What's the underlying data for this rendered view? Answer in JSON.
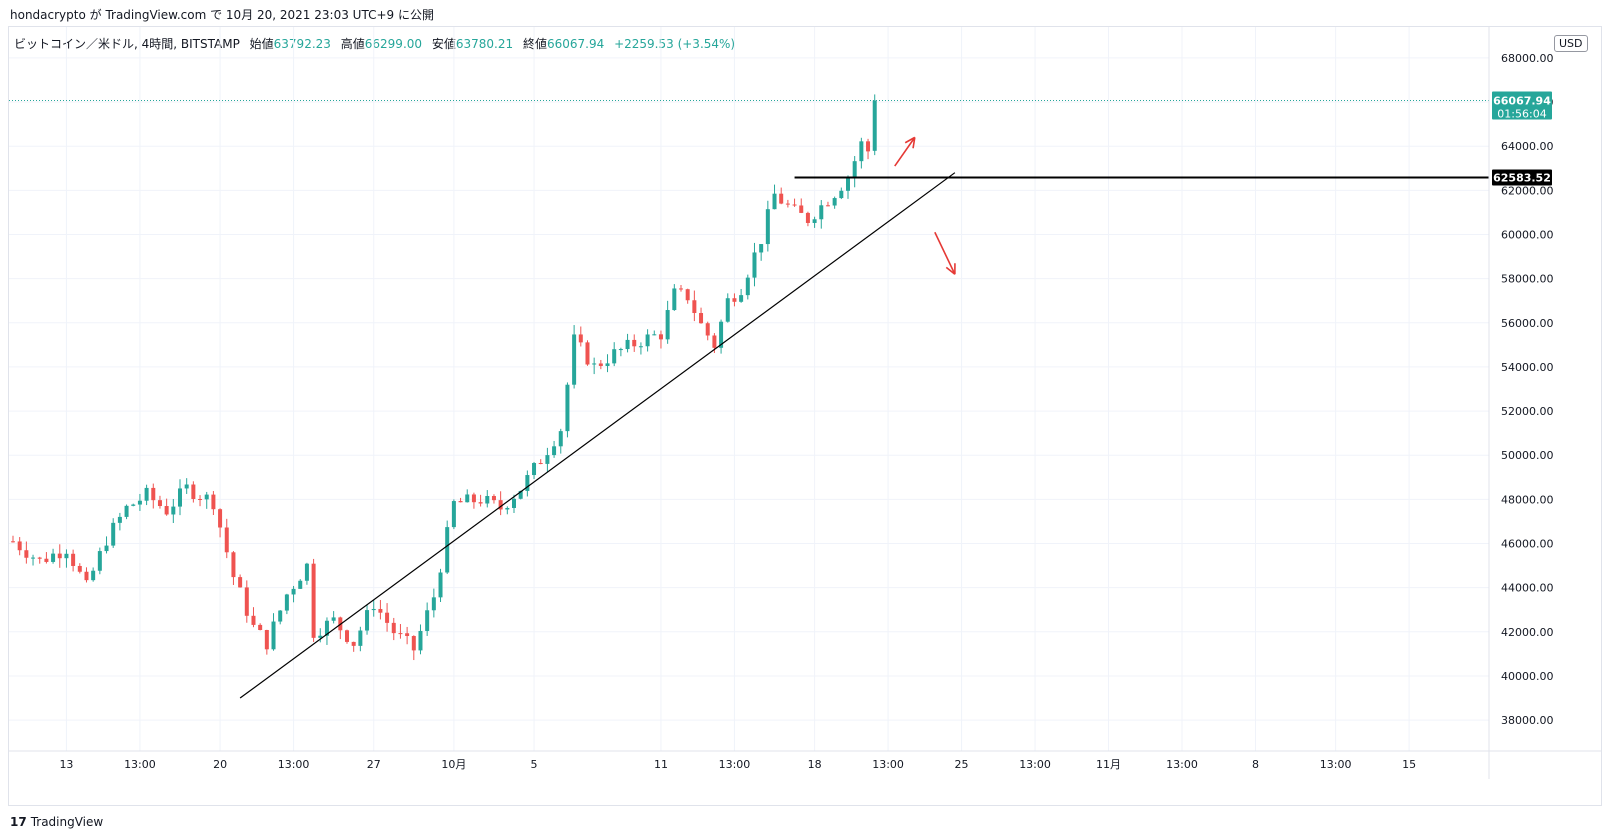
{
  "header": {
    "published_line": "hondacrypto が TradingView.com で 10月 20, 2021 23:03 UTC+9 に公開"
  },
  "legend": {
    "symbol": "ビットコイン／米ドル, 4時間, BITSTAMP",
    "open_label": "始値",
    "open": "63792.23",
    "high_label": "高値",
    "high": "66299.00",
    "low_label": "安値",
    "low": "63780.21",
    "close_label": "終値",
    "close": "66067.94",
    "change": "+2259.53 (+3.54%)"
  },
  "currency_button": "USD",
  "footer": {
    "logo": "17",
    "brand": "TradingView"
  },
  "colors": {
    "up": "#26a69a",
    "down": "#ef5350",
    "arrow": "#e53935",
    "grid": "#f0f3fa",
    "line": "#000000"
  },
  "chart_data": {
    "type": "candlestick",
    "timeframe": "4h",
    "ylim": [
      36600,
      69400
    ],
    "y_ticks": [
      38000,
      40000,
      42000,
      44000,
      46000,
      48000,
      50000,
      52000,
      54000,
      56000,
      58000,
      60000,
      62000,
      64000,
      66000,
      68000
    ],
    "y_tick_labels": [
      "38000.00",
      "40000.00",
      "42000.00",
      "44000.00",
      "46000.00",
      "48000.00",
      "50000.00",
      "52000.00",
      "54000.00",
      "56000.00",
      "58000.00",
      "60000.00",
      "62000.00",
      "64000.00",
      "66000.00",
      "68000.00"
    ],
    "x_ticks": [
      {
        "label": "13",
        "bar": 8
      },
      {
        "label": "13:00",
        "bar": 19
      },
      {
        "label": "20",
        "bar": 31
      },
      {
        "label": "13:00",
        "bar": 42
      },
      {
        "label": "27",
        "bar": 54
      },
      {
        "label": "10月",
        "bar": 66
      },
      {
        "label": "5",
        "bar": 78
      },
      {
        "label": "11",
        "bar": 97
      },
      {
        "label": "13:00",
        "bar": 108
      },
      {
        "label": "18",
        "bar": 120
      },
      {
        "label": "13:00",
        "bar": 131
      },
      {
        "label": "25",
        "bar": 142
      },
      {
        "label": "13:00",
        "bar": 153
      },
      {
        "label": "11月",
        "bar": 164
      },
      {
        "label": "13:00",
        "bar": 175
      },
      {
        "label": "8",
        "bar": 186
      },
      {
        "label": "13:00",
        "bar": 198
      },
      {
        "label": "15",
        "bar": 209
      }
    ],
    "bar_count_total": 212,
    "anchors": [
      {
        "bar": 0,
        "price": 46100
      },
      {
        "bar": 4,
        "price": 45200
      },
      {
        "bar": 8,
        "price": 45800
      },
      {
        "bar": 11,
        "price": 44000
      },
      {
        "bar": 14,
        "price": 46200
      },
      {
        "bar": 17,
        "price": 47600
      },
      {
        "bar": 20,
        "price": 48200
      },
      {
        "bar": 23,
        "price": 47500
      },
      {
        "bar": 26,
        "price": 48500
      },
      {
        "bar": 30,
        "price": 47900
      },
      {
        "bar": 33,
        "price": 44500
      },
      {
        "bar": 36,
        "price": 42200
      },
      {
        "bar": 38,
        "price": 41500
      },
      {
        "bar": 41,
        "price": 43700
      },
      {
        "bar": 44,
        "price": 45000
      },
      {
        "bar": 45,
        "price": 42000
      },
      {
        "bar": 48,
        "price": 42500
      },
      {
        "bar": 51,
        "price": 41500
      },
      {
        "bar": 54,
        "price": 43300
      },
      {
        "bar": 57,
        "price": 42000
      },
      {
        "bar": 60,
        "price": 41200
      },
      {
        "bar": 63,
        "price": 43600
      },
      {
        "bar": 66,
        "price": 47800
      },
      {
        "bar": 70,
        "price": 48000
      },
      {
        "bar": 73,
        "price": 47600
      },
      {
        "bar": 76,
        "price": 48500
      },
      {
        "bar": 79,
        "price": 49800
      },
      {
        "bar": 82,
        "price": 51200
      },
      {
        "bar": 84,
        "price": 55200
      },
      {
        "bar": 87,
        "price": 54000
      },
      {
        "bar": 90,
        "price": 54600
      },
      {
        "bar": 94,
        "price": 55200
      },
      {
        "bar": 97,
        "price": 55500
      },
      {
        "bar": 99,
        "price": 57300
      },
      {
        "bar": 101,
        "price": 57200
      },
      {
        "bar": 103,
        "price": 55900
      },
      {
        "bar": 105,
        "price": 55000
      },
      {
        "bar": 107,
        "price": 57000
      },
      {
        "bar": 109,
        "price": 57600
      },
      {
        "bar": 112,
        "price": 59800
      },
      {
        "bar": 114,
        "price": 61800
      },
      {
        "bar": 117,
        "price": 61000
      },
      {
        "bar": 119,
        "price": 60700
      },
      {
        "bar": 121,
        "price": 61300
      },
      {
        "bar": 123,
        "price": 61900
      },
      {
        "bar": 125,
        "price": 62600
      },
      {
        "bar": 127,
        "price": 64100
      },
      {
        "bar": 128,
        "price": 63790
      },
      {
        "bar": 129,
        "price": 66067.94
      }
    ],
    "annotations": {
      "last_price": "66067.94",
      "countdown": "01:56:04",
      "horizontal_level": "62583.52",
      "horizontal_segment_bars": [
        117,
        210
      ],
      "trendline": [
        {
          "bar": 34,
          "price": 39000
        },
        {
          "bar": 141,
          "price": 62800
        }
      ],
      "arrow_up": {
        "from": [
          132,
          63100
        ],
        "to": [
          135,
          64400
        ]
      },
      "arrow_down": {
        "from": [
          138,
          60100
        ],
        "to": [
          141,
          58200
        ]
      }
    }
  }
}
